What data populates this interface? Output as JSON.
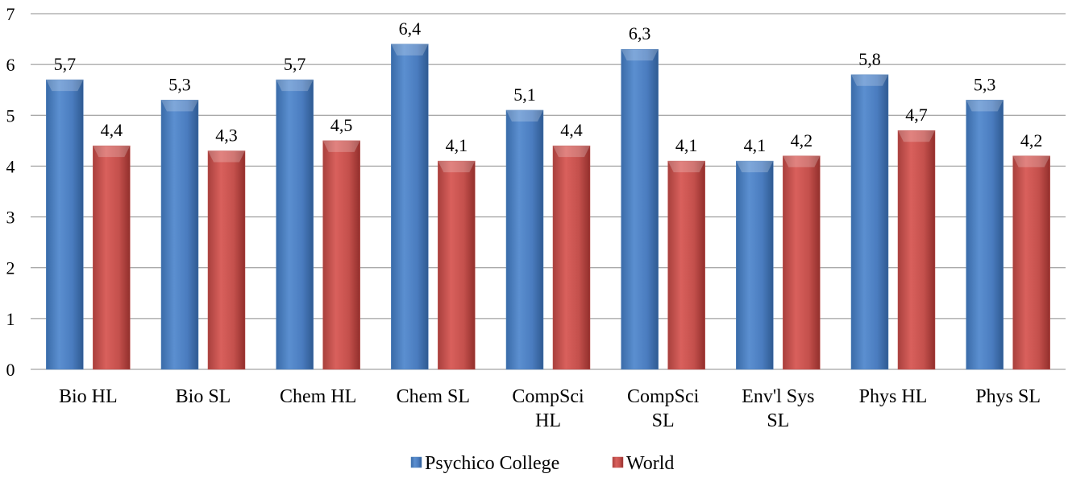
{
  "chart_data": {
    "type": "bar",
    "title": "",
    "xlabel": "",
    "ylabel": "",
    "ylim": [
      0,
      7
    ],
    "yticks": [
      0,
      1,
      2,
      3,
      4,
      5,
      6,
      7
    ],
    "grid": true,
    "legend_position": "bottom",
    "categories": [
      [
        "Bio HL"
      ],
      [
        "Bio SL"
      ],
      [
        "Chem HL"
      ],
      [
        "Chem SL"
      ],
      [
        "CompSci",
        "HL"
      ],
      [
        "CompSci",
        "SL"
      ],
      [
        "Env'l Sys",
        "SL"
      ],
      [
        "Phys HL"
      ],
      [
        "Phys SL"
      ]
    ],
    "series": [
      {
        "name": "Psychico College",
        "color": "#4F81BD",
        "values": [
          5.7,
          5.3,
          5.7,
          6.4,
          5.1,
          6.3,
          4.1,
          5.8,
          5.3
        ],
        "labels": [
          "5,7",
          "5,3",
          "5,7",
          "6,4",
          "5,1",
          "6,3",
          "4,1",
          "5,8",
          "5,3"
        ]
      },
      {
        "name": "World",
        "color": "#C0504D",
        "values": [
          4.4,
          4.3,
          4.5,
          4.1,
          4.4,
          4.1,
          4.2,
          4.7,
          4.2
        ],
        "labels": [
          "4,4",
          "4,3",
          "4,5",
          "4,1",
          "4,4",
          "4,1",
          "4,2",
          "4,7",
          "4,2"
        ]
      }
    ]
  }
}
